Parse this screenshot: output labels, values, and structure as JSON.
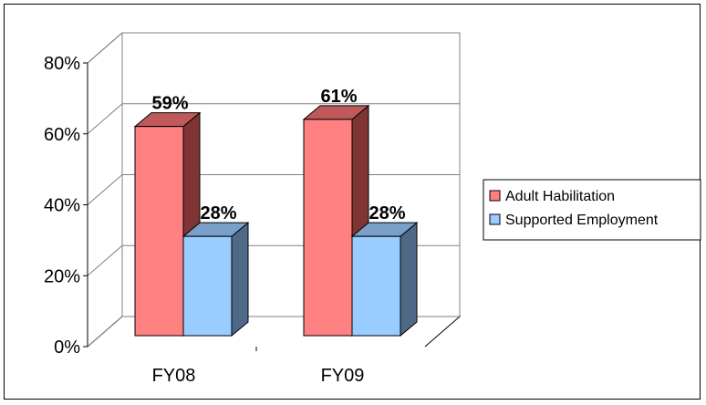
{
  "chart_data": {
    "type": "bar",
    "categories": [
      "FY08",
      "FY09"
    ],
    "series": [
      {
        "name": "Adult Habilitation",
        "values": [
          59,
          61
        ],
        "labels": [
          "59%",
          "61%"
        ],
        "color": "#ff8080",
        "top_color": "#c05a5a",
        "side_color": "#803535"
      },
      {
        "name": "Supported Employment",
        "values": [
          28,
          28
        ],
        "labels": [
          "28%",
          "28%"
        ],
        "color": "#99ccff",
        "top_color": "#7a9fc8",
        "side_color": "#4f6a88"
      }
    ],
    "ylim": [
      0,
      80
    ],
    "yticks": [
      0,
      20,
      40,
      60,
      80
    ],
    "ytick_labels": [
      "0%",
      "20%",
      "40%",
      "60%",
      "80%"
    ],
    "grid": true,
    "legend_position": "right",
    "style": "3d-clustered-column"
  }
}
